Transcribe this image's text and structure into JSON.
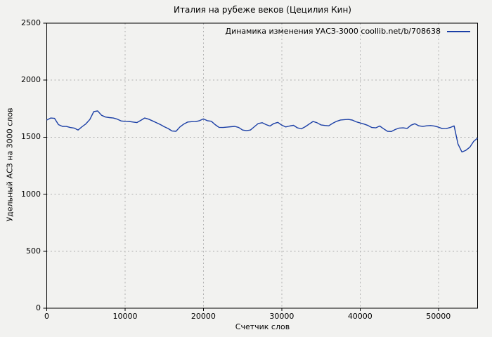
{
  "page": {
    "background": "#f2f2f0",
    "frame_color": "#000000",
    "grid_color": "#b0b0b0"
  },
  "title": "Италия на рубеже веков (Цецилия Кин)",
  "legend": {
    "label": "Динамика изменения УАСЗ-3000 coollib.net/b/708638",
    "line_color": "#1b3fa6",
    "position": "top-right"
  },
  "chart_data": {
    "type": "line",
    "title": "Италия на рубеже веков (Цецилия Кин)",
    "xlabel": "Счетчик слов",
    "ylabel": "Удельный АСЗ на 3000 слов",
    "xlim": [
      0,
      55000
    ],
    "ylim": [
      0,
      2500
    ],
    "xticks": [
      0,
      10000,
      20000,
      30000,
      40000,
      50000
    ],
    "yticks": [
      0,
      500,
      1000,
      1500,
      2000,
      2500
    ],
    "grid": true,
    "legend_position": "top-right inside",
    "series": [
      {
        "name": "Динамика изменения УАСЗ-3000 coollib.net/b/708638",
        "color": "#1b3fa6",
        "x_step": 500,
        "x": [
          0,
          500,
          1000,
          1500,
          2000,
          2500,
          3000,
          3500,
          4000,
          4500,
          5000,
          5500,
          6000,
          6500,
          7000,
          7500,
          8000,
          8500,
          9000,
          9500,
          10000,
          10500,
          11000,
          11500,
          12000,
          12500,
          13000,
          13500,
          14000,
          14500,
          15000,
          15500,
          16000,
          16500,
          17000,
          17500,
          18000,
          18500,
          19000,
          19500,
          20000,
          20500,
          21000,
          21500,
          22000,
          22500,
          23000,
          23500,
          24000,
          24500,
          25000,
          25500,
          26000,
          26500,
          27000,
          27500,
          28000,
          28500,
          29000,
          29500,
          30000,
          30500,
          31000,
          31500,
          32000,
          32500,
          33000,
          33500,
          34000,
          34500,
          35000,
          35500,
          36000,
          36500,
          37000,
          37500,
          38000,
          38500,
          39000,
          39500,
          40000,
          40500,
          41000,
          41500,
          42000,
          42500,
          43000,
          43500,
          44000,
          44500,
          45000,
          45500,
          46000,
          46500,
          47000,
          47500,
          48000,
          48500,
          49000,
          49500,
          50000,
          50500,
          51000,
          51500,
          52000,
          52500,
          53000,
          53500,
          54000,
          54500,
          55000
        ],
        "values": [
          1650,
          1668,
          1665,
          1610,
          1595,
          1594,
          1585,
          1580,
          1563,
          1592,
          1617,
          1655,
          1724,
          1730,
          1692,
          1677,
          1672,
          1668,
          1658,
          1642,
          1639,
          1638,
          1633,
          1628,
          1647,
          1668,
          1658,
          1643,
          1627,
          1611,
          1592,
          1576,
          1554,
          1552,
          1590,
          1615,
          1633,
          1636,
          1637,
          1645,
          1660,
          1645,
          1640,
          1610,
          1586,
          1585,
          1588,
          1592,
          1595,
          1585,
          1563,
          1557,
          1563,
          1592,
          1620,
          1627,
          1610,
          1598,
          1620,
          1630,
          1605,
          1590,
          1598,
          1604,
          1582,
          1573,
          1592,
          1615,
          1638,
          1627,
          1608,
          1603,
          1600,
          1622,
          1639,
          1651,
          1654,
          1656,
          1650,
          1635,
          1625,
          1615,
          1603,
          1585,
          1582,
          1598,
          1574,
          1552,
          1550,
          1568,
          1580,
          1582,
          1577,
          1605,
          1618,
          1600,
          1594,
          1600,
          1602,
          1597,
          1588,
          1575,
          1576,
          1585,
          1599,
          1440,
          1370,
          1385,
          1412,
          1463,
          1492
        ]
      }
    ]
  }
}
